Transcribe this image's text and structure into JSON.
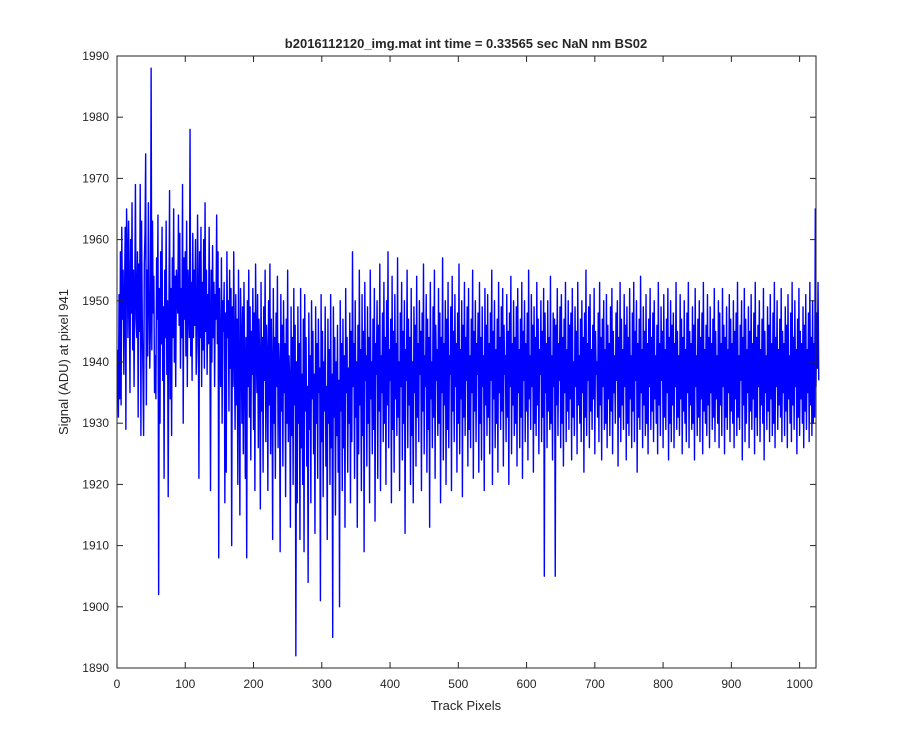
{
  "chart_data": {
    "type": "line",
    "title": "b2016112120_img.mat int time = 0.33565 sec  NaN nm BS02",
    "xlabel": "Track Pixels",
    "ylabel": "Signal (ADU) at pixel 941",
    "xlim": [
      0,
      1024
    ],
    "ylim": [
      1890,
      1990
    ],
    "xticks": [
      0,
      100,
      200,
      300,
      400,
      500,
      600,
      700,
      800,
      900,
      1000
    ],
    "yticks": [
      1890,
      1900,
      1910,
      1920,
      1930,
      1940,
      1950,
      1960,
      1970,
      1980,
      1990
    ],
    "grid": false,
    "line_color": "#0000ff",
    "series": [
      {
        "name": "",
        "x_start": 1,
        "x_step": 1,
        "values": [
          1942,
          1931,
          1951,
          1934,
          1958,
          1933,
          1962,
          1947,
          1955,
          1938,
          1950,
          1962,
          1929,
          1965,
          1958,
          1944,
          1963,
          1952,
          1935,
          1960,
          1948,
          1966,
          1942,
          1955,
          1936,
          1951,
          1969,
          1947,
          1944,
          1958,
          1931,
          1956,
          1945,
          1969,
          1928,
          1963,
          1947,
          1938,
          1928,
          1956,
          1961,
          1974,
          1933,
          1955,
          1941,
          1966,
          1952,
          1939,
          1946,
          1988,
          1942,
          1963,
          1948,
          1954,
          1935,
          1941,
          1934,
          1957,
          1947,
          1964,
          1902,
          1952,
          1930,
          1958,
          1943,
          1962,
          1937,
          1949,
          1921,
          1955,
          1944,
          1963,
          1938,
          1950,
          1918,
          1947,
          1968,
          1934,
          1952,
          1928,
          1957,
          1944,
          1965,
          1940,
          1954,
          1936,
          1955,
          1951,
          1948,
          1964,
          1946,
          1961,
          1939,
          1952,
          1944,
          1969,
          1930,
          1957,
          1947,
          1958,
          1941,
          1963,
          1936,
          1955,
          1949,
          1944,
          1978,
          1941,
          1953,
          1937,
          1961,
          1944,
          1955,
          1946,
          1960,
          1938,
          1943,
          1964,
          1952,
          1921,
          1958,
          1944,
          1962,
          1936,
          1953,
          1942,
          1960,
          1939,
          1966,
          1945,
          1955,
          1938,
          1951,
          1943,
          1962,
          1946,
          1919,
          1955,
          1940,
          1959,
          1944,
          1953,
          1936,
          1951,
          1947,
          1964,
          1943,
          1958,
          1908,
          1952,
          1941,
          1936,
          1957,
          1930,
          1950,
          1945,
          1953,
          1917,
          1948,
          1922,
          1958,
          1944,
          1950,
          1932,
          1955,
          1939,
          1952,
          1910,
          1949,
          1936,
          1958,
          1942,
          1929,
          1951,
          1933,
          1947,
          1920,
          1955,
          1938,
          1915,
          1952,
          1944,
          1930,
          1949,
          1925,
          1953,
          1940,
          1921,
          1944,
          1908,
          1950,
          1936,
          1955,
          1931,
          1949,
          1924,
          1945,
          1938,
          1952,
          1929,
          1948,
          1919,
          1956,
          1943,
          1935,
          1951,
          1926,
          1947,
          1940,
          1916,
          1953,
          1932,
          1944,
          1922,
          1949,
          1937,
          1955,
          1927,
          1946,
          1941,
          1919,
          1950,
          1933,
          1956,
          1925,
          1947,
          1939,
          1911,
          1952,
          1930,
          1944,
          1921,
          1948,
          1936,
          1954,
          1926,
          1943,
          1939,
          1909,
          1951,
          1932,
          1946,
          1923,
          1950,
          1935,
          1943,
          1918,
          1947,
          1930,
          1955,
          1927,
          1941,
          1937,
          1913,
          1949,
          1928,
          1944,
          1920,
          1952,
          1933,
          1946,
          1892,
          1940,
          1917,
          1949,
          1930,
          1943,
          1911,
          1952,
          1926,
          1938,
          1920,
          1947,
          1909,
          1951,
          1932,
          1944,
          1923,
          1936,
          1904,
          1948,
          1929,
          1941,
          1917,
          1950,
          1934,
          1945,
          1925,
          1938,
          1912,
          1949,
          1930,
          1943,
          1921,
          1947,
          1935,
          1939,
          1901,
          1951,
          1927,
          1945,
          1918,
          1940,
          1932,
          1949,
          1923,
          1936,
          1911,
          1947,
          1930,
          1942,
          1920,
          1951,
          1926,
          1938,
          1895,
          1949,
          1931,
          1944,
          1915,
          1940,
          1928,
          1946,
          1922,
          1937,
          1900,
          1950,
          1932,
          1943,
          1919,
          1947,
          1926,
          1941,
          1913,
          1952,
          1935,
          1944,
          1922,
          1939,
          1930,
          1948,
          1917,
          1945,
          1927,
          1958,
          1936,
          1943,
          1921,
          1950,
          1931,
          1940,
          1913,
          1946,
          1925,
          1955,
          1933,
          1942,
          1919,
          1951,
          1928,
          1945,
          1909,
          1953,
          1937,
          1941,
          1923,
          1949,
          1930,
          1944,
          1917,
          1955,
          1934,
          1940,
          1925,
          1947,
          1929,
          1952,
          1914,
          1943,
          1938,
          1950,
          1921,
          1946,
          1932,
          1956,
          1919,
          1941,
          1935,
          1948,
          1927,
          1953,
          1930,
          1944,
          1920,
          1950,
          1933,
          1958,
          1926,
          1942,
          1937,
          1947,
          1917,
          1954,
          1929,
          1945,
          1922,
          1951,
          1934,
          1943,
          1928,
          1957,
          1931,
          1940,
          1919,
          1948,
          1936,
          1953,
          1924,
          1945,
          1930,
          1950,
          1912,
          1942,
          1937,
          1955,
          1926,
          1947,
          1933,
          1944,
          1920,
          1952,
          1928,
          1940,
          1917,
          1949,
          1935,
          1946,
          1923,
          1954,
          1931,
          1943,
          1927,
          1950,
          1938,
          1945,
          1919,
          1948,
          1932,
          1956,
          1925,
          1941,
          1936,
          1951,
          1922,
          1947,
          1929,
          1944,
          1913,
          1953,
          1934,
          1940,
          1926,
          1949,
          1931,
          1955,
          1921,
          1946,
          1937,
          1942,
          1928,
          1952,
          1930,
          1948,
          1917,
          1944,
          1935,
          1957,
          1924,
          1943,
          1933,
          1950,
          1920,
          1947,
          1929,
          1953,
          1926,
          1941,
          1938,
          1949,
          1919,
          1954,
          1932,
          1945,
          1927,
          1951,
          1936,
          1943,
          1922,
          1948,
          1930,
          1956,
          1925,
          1942,
          1934,
          1950,
          1918,
          1946,
          1931,
          1953,
          1928,
          1944,
          1937,
          1949,
          1923,
          1952,
          1929,
          1941,
          1926,
          1947,
          1935,
          1955,
          1921,
          1945,
          1932,
          1950,
          1927,
          1943,
          1938,
          1948,
          1922,
          1953,
          1930,
          1944,
          1924,
          1949,
          1936,
          1941,
          1919,
          1952,
          1933,
          1946,
          1928,
          1951,
          1931,
          1943,
          1925,
          1948,
          1937,
          1955,
          1920,
          1945,
          1934,
          1950,
          1926,
          1942,
          1930,
          1947,
          1922,
          1953,
          1935,
          1944,
          1929,
          1949,
          1932,
          1952,
          1923,
          1946,
          1938,
          1941,
          1927,
          1951,
          1931,
          1945,
          1920,
          1948,
          1936,
          1954,
          1925,
          1943,
          1933,
          1950,
          1928,
          1944,
          1930,
          1949,
          1923,
          1952,
          1935,
          1942,
          1926,
          1947,
          1931,
          1953,
          1921,
          1945,
          1937,
          1950,
          1927,
          1943,
          1932,
          1948,
          1924,
          1955,
          1934,
          1941,
          1929,
          1951,
          1936,
          1946,
          1922,
          1949,
          1930,
          1944,
          1928,
          1953,
          1933,
          1947,
          1925,
          1942,
          1938,
          1950,
          1927,
          1945,
          1931,
          1952,
          1905,
          1948,
          1935,
          1943,
          1926,
          1950,
          1932,
          1944,
          1929,
          1954,
          1930,
          1941,
          1924,
          1948,
          1936,
          1947,
          1905,
          1946,
          1933,
          1952,
          1928,
          1943,
          1937,
          1949,
          1926,
          1951,
          1930,
          1944,
          1923,
          1947,
          1935,
          1953,
          1927,
          1942,
          1932,
          1950,
          1929,
          1946,
          1934,
          1948,
          1924,
          1952,
          1931,
          1940,
          1928,
          1949,
          1936,
          1945,
          1925,
          1953,
          1933,
          1941,
          1930,
          1947,
          1927,
          1950,
          1935,
          1944,
          1922,
          1948,
          1931,
          1955,
          1928,
          1943,
          1937,
          1949,
          1926,
          1951,
          1932,
          1942,
          1929,
          1946,
          1934,
          1952,
          1925,
          1945,
          1938,
          1940,
          1931,
          1948,
          1927,
          1953,
          1933,
          1944,
          1924,
          1947,
          1936,
          1950,
          1929,
          1942,
          1930,
          1951,
          1926,
          1946,
          1934,
          1943,
          1928,
          1949,
          1932,
          1952,
          1925,
          1945,
          1935,
          1941,
          1930,
          1948,
          1937,
          1950,
          1923,
          1944,
          1931,
          1953,
          1927,
          1947,
          1933,
          1942,
          1929,
          1951,
          1936,
          1946,
          1924,
          1949,
          1930,
          1944,
          1928,
          1952,
          1934,
          1941,
          1926,
          1948,
          1932,
          1953,
          1927,
          1945,
          1937,
          1950,
          1922,
          1943,
          1931,
          1947,
          1929,
          1954,
          1935,
          1942,
          1926,
          1949,
          1933,
          1945,
          1928,
          1951,
          1930,
          1943,
          1925,
          1947,
          1936,
          1952,
          1929,
          1944,
          1932,
          1948,
          1927,
          1950,
          1934,
          1941,
          1930,
          1946,
          1925,
          1953,
          1933,
          1943,
          1928,
          1949,
          1937,
          1945,
          1926,
          1951,
          1931,
          1942,
          1929,
          1947,
          1935,
          1952,
          1924,
          1944,
          1930,
          1950,
          1927,
          1946,
          1933,
          1948,
          1926,
          1943,
          1936,
          1953,
          1929,
          1945,
          1931,
          1941,
          1928,
          1951,
          1934,
          1947,
          1925,
          1944,
          1932,
          1950,
          1930,
          1942,
          1927,
          1948,
          1935,
          1953,
          1926,
          1945,
          1933,
          1943,
          1929,
          1949,
          1930,
          1946,
          1924,
          1952,
          1936,
          1941,
          1928,
          1947,
          1931,
          1950,
          1927,
          1944,
          1934,
          1948,
          1925,
          1953,
          1932,
          1942,
          1930,
          1946,
          1928,
          1951,
          1933,
          1944,
          1926,
          1949,
          1935,
          1943,
          1929,
          1947,
          1931,
          1952,
          1927,
          1945,
          1934,
          1941,
          1930,
          1950,
          1926,
          1948,
          1933,
          1943,
          1928,
          1952,
          1936,
          1946,
          1925,
          1944,
          1931,
          1949,
          1929,
          1942,
          1935,
          1951,
          1927,
          1947,
          1932,
          1943,
          1930,
          1950,
          1926,
          1945,
          1934,
          1948,
          1928,
          1953,
          1931,
          1941,
          1929,
          1946,
          1937,
          1950,
          1924,
          1944,
          1933,
          1952,
          1927,
          1947,
          1930,
          1942,
          1935,
          1949,
          1926,
          1945,
          1932,
          1951,
          1929,
          1943,
          1934,
          1948,
          1925,
          1953,
          1931,
          1944,
          1928,
          1946,
          1936,
          1950,
          1927,
          1942,
          1933,
          1947,
          1930,
          1952,
          1924,
          1945,
          1935,
          1941,
          1929,
          1949,
          1932,
          1946,
          1927,
          1951,
          1934,
          1943,
          1928,
          1948,
          1930,
          1953,
          1926,
          1944,
          1936,
          1950,
          1929,
          1942,
          1933,
          1947,
          1931,
          1952,
          1927,
          1945,
          1935,
          1943,
          1928,
          1949,
          1932,
          1946,
          1926,
          1951,
          1934,
          1941,
          1930,
          1948,
          1927,
          1953,
          1933,
          1944,
          1929,
          1950,
          1936,
          1942,
          1925,
          1947,
          1931,
          1952,
          1928,
          1945,
          1934,
          1943,
          1930,
          1949,
          1926,
          1946,
          1932,
          1951,
          1929,
          1942,
          1935,
          1948,
          1927,
          1953,
          1933,
          1944,
          1928,
          1950,
          1930,
          1943,
          1931,
          1965,
          1936,
          1948,
          1939,
          1953,
          1937
        ]
      }
    ]
  }
}
